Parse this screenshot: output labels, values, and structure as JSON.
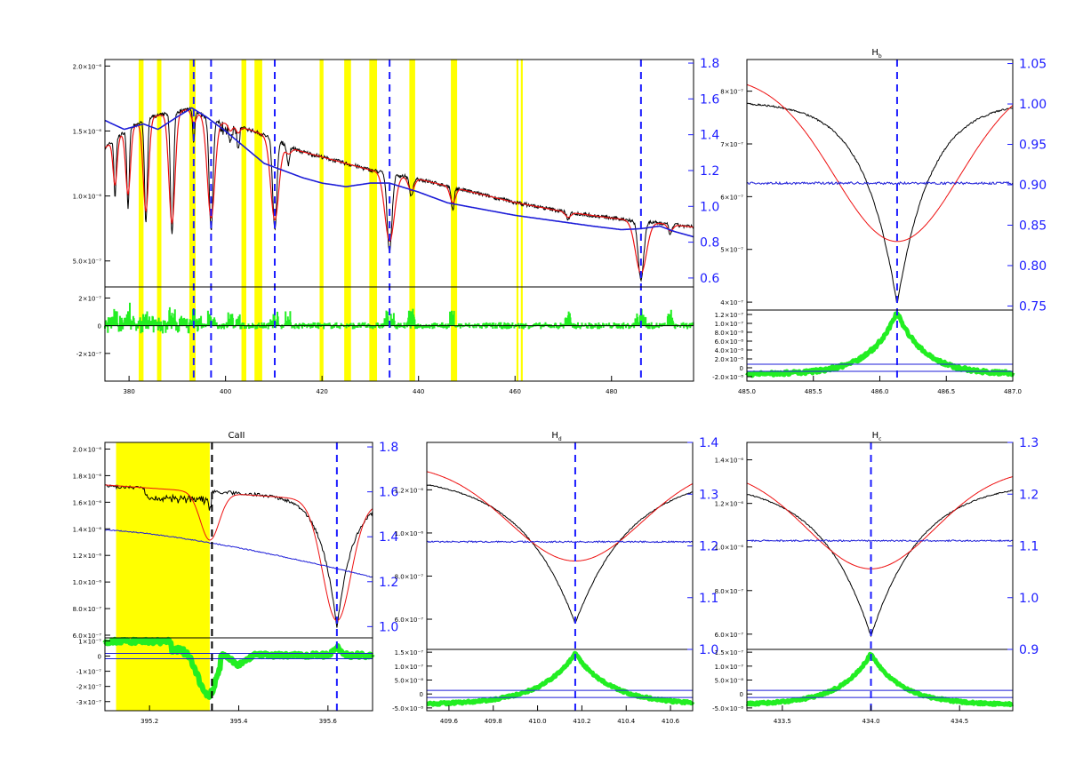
{
  "colors": {
    "observed": "#000000",
    "model": "#ee1111",
    "continuum": "#1c1cd8",
    "residual": "#22ee22",
    "line_marker": "#1c1cff",
    "highlight": "#ffff00",
    "right_axis": "#1c1cff"
  },
  "chart_data": [
    {
      "id": "overview",
      "type": "line",
      "title": "",
      "xlim": [
        375,
        497
      ],
      "ylim": [
        3e-07,
        2.05e-06
      ],
      "y2lim": [
        0.55,
        1.82
      ],
      "x_ticks": [
        "380",
        "400",
        "420",
        "440",
        "460",
        "480"
      ],
      "y_ticks": [
        "2.0×10⁻⁶",
        "1.5×10⁻⁶",
        "1.0×10⁻⁶",
        "5.0×10⁻⁷"
      ],
      "y2_ticks": [
        "1.8",
        "1.6",
        "1.4",
        "1.2",
        "1.0",
        "0.8",
        "0.6"
      ],
      "resid_ticks": [
        "2×10⁻⁷",
        "0",
        "-2×10⁻⁷"
      ],
      "resid_ylim": [
        -4e-07,
        2.8e-07
      ],
      "line_markers": [
        393.4,
        397.0,
        410.2,
        434.0,
        486.1
      ],
      "bands": [
        [
          382.0,
          383.0
        ],
        [
          385.8,
          386.7
        ],
        [
          392.5,
          393.8
        ],
        [
          403.3,
          404.3
        ],
        [
          406.0,
          407.6
        ],
        [
          419.5,
          420.3
        ],
        [
          424.6,
          426.0
        ],
        [
          429.8,
          431.4
        ],
        [
          438.1,
          439.3
        ],
        [
          446.7,
          448.0
        ],
        [
          460.3,
          460.7
        ],
        [
          461.2,
          461.6
        ]
      ],
      "continuum": [
        [
          375,
          1.48
        ],
        [
          379,
          1.43
        ],
        [
          383,
          1.46
        ],
        [
          386,
          1.43
        ],
        [
          390,
          1.5
        ],
        [
          393,
          1.55
        ],
        [
          396,
          1.5
        ],
        [
          400,
          1.42
        ],
        [
          404,
          1.33
        ],
        [
          408,
          1.24
        ],
        [
          412,
          1.2
        ],
        [
          416,
          1.16
        ],
        [
          420,
          1.13
        ],
        [
          425,
          1.11
        ],
        [
          430,
          1.13
        ],
        [
          434,
          1.13
        ],
        [
          440,
          1.08
        ],
        [
          446,
          1.02
        ],
        [
          452,
          0.99
        ],
        [
          460,
          0.95
        ],
        [
          468,
          0.92
        ],
        [
          476,
          0.89
        ],
        [
          482,
          0.87
        ],
        [
          486,
          0.875
        ],
        [
          490,
          0.89
        ],
        [
          493,
          0.86
        ],
        [
          497,
          0.83
        ]
      ],
      "flux_base": [
        [
          375,
          1.37e-06
        ],
        [
          380,
          1.52e-06
        ],
        [
          385,
          1.61e-06
        ],
        [
          390,
          1.65e-06
        ],
        [
          393,
          1.67e-06
        ],
        [
          397,
          1.58e-06
        ],
        [
          400,
          1.56e-06
        ],
        [
          405,
          1.51e-06
        ],
        [
          410,
          1.44e-06
        ],
        [
          415,
          1.35e-06
        ],
        [
          420,
          1.3e-06
        ],
        [
          430,
          1.2e-06
        ],
        [
          440,
          1.13e-06
        ],
        [
          450,
          1.04e-06
        ],
        [
          460,
          9.5e-07
        ],
        [
          470,
          8.8e-07
        ],
        [
          480,
          8.3e-07
        ],
        [
          490,
          7.9e-07
        ],
        [
          497,
          7.6e-07
        ]
      ],
      "lines": [
        {
          "c": 377.1,
          "w": 0.3,
          "d": 4.5e-07,
          "wm": 0.6,
          "dm": 3.5e-07
        },
        {
          "c": 379.8,
          "w": 0.35,
          "d": 6e-07,
          "wm": 0.7,
          "dm": 5e-07
        },
        {
          "c": 383.5,
          "w": 0.4,
          "d": 8e-07,
          "wm": 0.8,
          "dm": 7e-07
        },
        {
          "c": 388.9,
          "w": 0.45,
          "d": 9.5e-07,
          "wm": 0.9,
          "dm": 8.5e-07
        },
        {
          "c": 393.4,
          "w": 0.3,
          "d": 2.5e-07,
          "wm": 0.7,
          "dm": 1e-07
        },
        {
          "c": 397.0,
          "w": 0.55,
          "d": 8.5e-07,
          "wm": 1.1,
          "dm": 7.5e-07
        },
        {
          "c": 401.0,
          "w": 0.35,
          "d": 1.2e-07,
          "wm": 0.6,
          "dm": 5e-08
        },
        {
          "c": 402.6,
          "w": 0.3,
          "d": 1.2e-07,
          "wm": 0.6,
          "dm": 5e-08
        },
        {
          "c": 410.2,
          "w": 0.6,
          "d": 7e-07,
          "wm": 1.2,
          "dm": 6.2e-07
        },
        {
          "c": 413.0,
          "w": 0.4,
          "d": 1.5e-07,
          "wm": 0.9,
          "dm": 6e-08
        },
        {
          "c": 434.0,
          "w": 0.7,
          "d": 6e-07,
          "wm": 1.4,
          "dm": 5.2e-07
        },
        {
          "c": 438.5,
          "w": 0.5,
          "d": 1.5e-07,
          "wm": 0.9,
          "dm": 1e-07
        },
        {
          "c": 447.1,
          "w": 0.4,
          "d": 1.8e-07,
          "wm": 0.8,
          "dm": 1.2e-07
        },
        {
          "c": 471.0,
          "w": 0.4,
          "d": 6e-08,
          "wm": 0.8,
          "dm": 4e-08
        },
        {
          "c": 486.1,
          "w": 0.8,
          "d": 4.5e-07,
          "wm": 1.6,
          "dm": 4e-07
        },
        {
          "c": 492.2,
          "w": 0.4,
          "d": 8e-08,
          "wm": 0.8,
          "dm": 5e-08
        }
      ]
    },
    {
      "id": "hbeta",
      "type": "line",
      "title": "H_b",
      "title_main": "H",
      "title_sub": "b",
      "xlim": [
        485.0,
        487.0
      ],
      "ylim": [
        3.85e-07,
        8.6e-07
      ],
      "y2lim": [
        0.745,
        1.055
      ],
      "x_ticks": [
        "485.0",
        "485.5",
        "486.0",
        "486.5",
        "487.0"
      ],
      "y_ticks": [
        "8×10⁻⁷",
        "7×10⁻⁷",
        "6×10⁻⁷",
        "5×10⁻⁷",
        "4×10⁻⁷"
      ],
      "y2_ticks": [
        "1.05",
        "1.00",
        "0.95",
        "0.90",
        "0.85",
        "0.80",
        "0.75"
      ],
      "resid_ticks": [
        "1.2×10⁻⁷",
        "1.0×10⁻⁷",
        "8.0×10⁻⁸",
        "6.0×10⁻⁸",
        "4.0×10⁻⁸",
        "2.0×10⁻⁸",
        "0",
        "-2.0×10⁻⁸"
      ],
      "resid_ylim": [
        -3e-08,
        1.3e-07
      ],
      "line_marker": 486.13,
      "center": 486.13,
      "obs_cont": 7.8e-07,
      "obs_depth": 3.85e-07,
      "obs_width": 0.55,
      "mod_cont": 8.3e-07,
      "mod_depth": 3.15e-07,
      "mod_width": 0.95,
      "cont_level": 0.902,
      "resid_peak": 1.25e-07,
      "resid_width": 0.35,
      "resid_floor": -1.5e-08
    },
    {
      "id": "caii",
      "type": "line",
      "title": "CaII",
      "xlim": [
        395.1,
        395.7
      ],
      "ylim": [
        5.8e-07,
        2.05e-06
      ],
      "y2lim": [
        0.95,
        1.82
      ],
      "x_ticks": [
        "395.2",
        "395.4",
        "395.6"
      ],
      "y_ticks": [
        "2.0×10⁻⁶",
        "1.8×10⁻⁶",
        "1.6×10⁻⁶",
        "1.4×10⁻⁶",
        "1.2×10⁻⁶",
        "1.0×10⁻⁶",
        "8.0×10⁻⁷",
        "6.0×10⁻⁷"
      ],
      "y2_ticks": [
        "1.8",
        "1.6",
        "1.4",
        "1.2",
        "1.0"
      ],
      "resid_ticks": [
        "1×10⁻⁷",
        "0",
        "-1×10⁻⁷",
        "-2×10⁻⁷",
        "-3×10⁻⁷"
      ],
      "resid_ylim": [
        -3.6e-07,
        1.2e-07
      ],
      "line_markers": [
        395.34,
        395.62
      ],
      "band": [
        395.125,
        395.335
      ]
    },
    {
      "id": "hdelta",
      "type": "line",
      "title": "H_d",
      "title_main": "H",
      "title_sub": "d",
      "xlim": [
        409.5,
        410.7
      ],
      "ylim": [
        4.6e-07,
        1.42e-06
      ],
      "y2lim": [
        1.0,
        1.4
      ],
      "x_ticks": [
        "409.6",
        "409.8",
        "410.0",
        "410.2",
        "410.4",
        "410.6"
      ],
      "y_ticks": [
        "1.2×10⁻⁶",
        "1.0×10⁻⁶",
        "8.0×10⁻⁷",
        "6.0×10⁻⁷"
      ],
      "y2_ticks": [
        "1.4",
        "1.3",
        "1.2",
        "1.1",
        "1.0"
      ],
      "resid_ticks": [
        "1.5×10⁻⁷",
        "1.0×10⁻⁷",
        "5.0×10⁻⁸",
        "0",
        "-5.0×10⁻⁸"
      ],
      "resid_ylim": [
        -6e-08,
        1.6e-07
      ],
      "line_marker": 410.17,
      "center": 410.17,
      "obs_cont": 1.27e-06,
      "obs_depth": 6.9e-07,
      "obs_width": 0.55,
      "mod_cont": 1.32e-06,
      "mod_depth": 4.5e-07,
      "mod_width": 0.6,
      "cont_level": 1.208,
      "resid_peak": 1.45e-07,
      "resid_width": 0.26,
      "resid_floor": -4e-08
    },
    {
      "id": "hgamma",
      "type": "line",
      "title": "H_c",
      "title_main": "H",
      "title_sub": "c",
      "xlim": [
        433.3,
        434.8
      ],
      "ylim": [
        5.3e-07,
        1.48e-06
      ],
      "y2lim": [
        0.9,
        1.3
      ],
      "x_ticks": [
        "433.5",
        "434.0",
        "434.5"
      ],
      "y_ticks": [
        "1.4×10⁻⁶",
        "1.2×10⁻⁶",
        "1.0×10⁻⁶",
        "8.0×10⁻⁷",
        "6.0×10⁻⁷"
      ],
      "y2_ticks": [
        "1.3",
        "1.2",
        "1.1",
        "1.0",
        "0.9"
      ],
      "resid_ticks": [
        "1.5×10⁻⁷",
        "1.0×10⁻⁷",
        "5.0×10⁻⁸",
        "0",
        "-5.0×10⁻⁸"
      ],
      "resid_ylim": [
        -6e-08,
        1.6e-07
      ],
      "line_marker": 434.0,
      "center": 434.0,
      "obs_cont": 1.3e-06,
      "obs_depth": 7.1e-07,
      "obs_width": 0.62,
      "mod_cont": 1.36e-06,
      "mod_depth": 4.6e-07,
      "mod_width": 0.72,
      "cont_level": 1.11,
      "resid_peak": 1.45e-07,
      "resid_width": 0.28,
      "resid_floor": -4e-08
    }
  ]
}
